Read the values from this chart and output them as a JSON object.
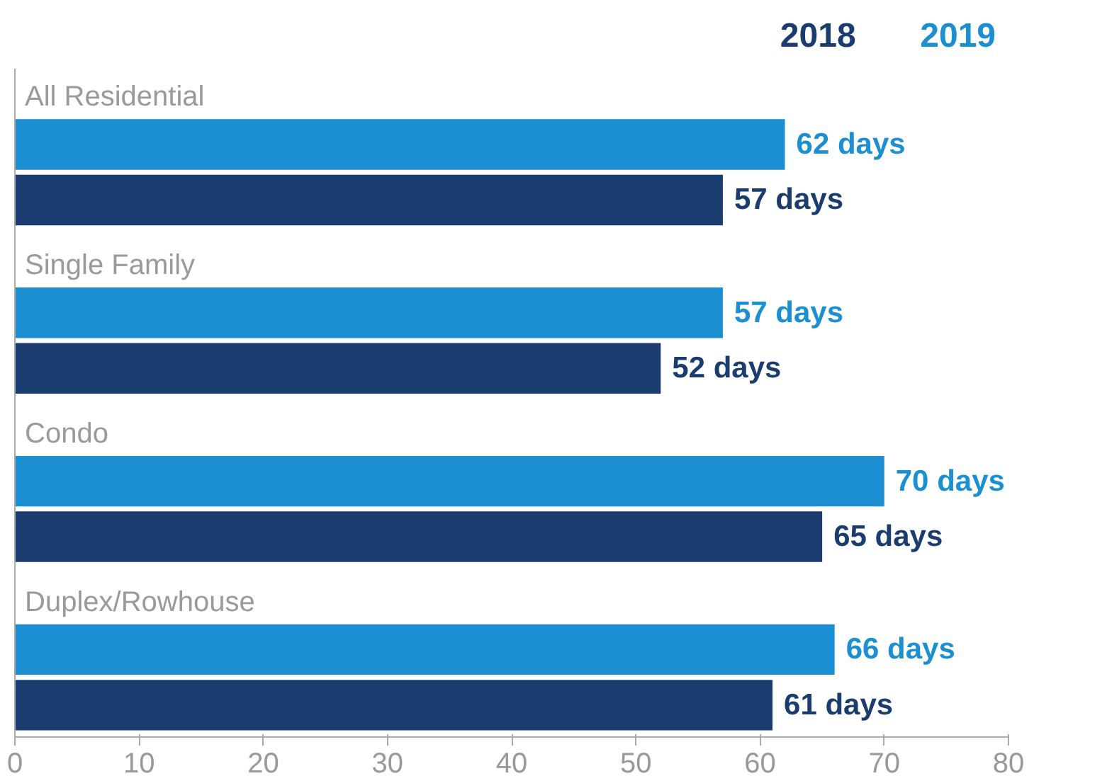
{
  "chart_data": {
    "type": "bar",
    "orientation": "horizontal",
    "categories": [
      "All Residential",
      "Single Family",
      "Condo",
      "Duplex/Rowhouse"
    ],
    "series": [
      {
        "name": "2019",
        "color": "#1b8fd2",
        "values": [
          62,
          57,
          70,
          66
        ],
        "value_labels": [
          "62 days",
          "57 days",
          "70 days",
          "66 days"
        ]
      },
      {
        "name": "2018",
        "color": "#1b3c6e",
        "values": [
          57,
          52,
          65,
          61
        ],
        "value_labels": [
          "57 days",
          "52 days",
          "65 days",
          "61 days"
        ]
      }
    ],
    "xlim": [
      0,
      80
    ],
    "xticks": [
      0,
      10,
      20,
      30,
      40,
      50,
      60,
      70,
      80
    ],
    "grid": false
  }
}
